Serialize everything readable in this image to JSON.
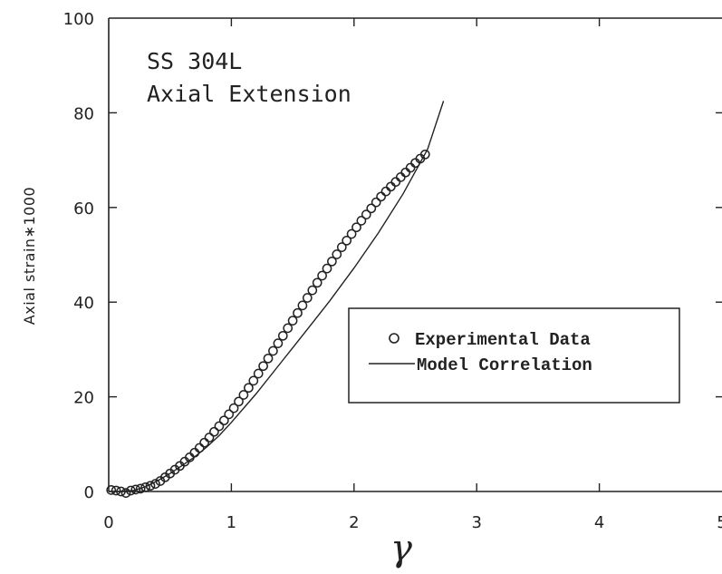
{
  "chart_data": {
    "type": "scatter",
    "title": "",
    "xlabel": "γ",
    "ylabel": "Axial strain∗1000",
    "xlim": [
      0,
      5
    ],
    "ylim": [
      0,
      100
    ],
    "xticks": [
      "0",
      "1",
      "2",
      "3",
      "4",
      "5"
    ],
    "yticks": [
      "0",
      "20",
      "40",
      "60",
      "80",
      "100"
    ],
    "annotation": [
      "SS 304L",
      "Axial Extension"
    ],
    "legend_position": "center-right",
    "grid": false,
    "series": [
      {
        "name": "Experimental Data",
        "marker": "open-circle",
        "x": [
          0.02,
          0.06,
          0.1,
          0.14,
          0.18,
          0.22,
          0.26,
          0.3,
          0.34,
          0.38,
          0.42,
          0.46,
          0.5,
          0.54,
          0.58,
          0.62,
          0.66,
          0.7,
          0.74,
          0.78,
          0.82,
          0.86,
          0.9,
          0.94,
          0.98,
          1.02,
          1.06,
          1.1,
          1.14,
          1.18,
          1.22,
          1.26,
          1.3,
          1.34,
          1.38,
          1.42,
          1.46,
          1.5,
          1.54,
          1.58,
          1.62,
          1.66,
          1.7,
          1.74,
          1.78,
          1.82,
          1.86,
          1.9,
          1.94,
          1.98,
          2.02,
          2.06,
          2.1,
          2.14,
          2.18,
          2.22,
          2.26,
          2.3,
          2.34,
          2.38,
          2.42,
          2.46,
          2.5,
          2.54,
          2.58
        ],
        "y": [
          0.3,
          0.2,
          0.0,
          -0.3,
          0.2,
          0.4,
          0.6,
          0.9,
          1.2,
          1.6,
          2.2,
          3.0,
          3.8,
          4.6,
          5.4,
          6.3,
          7.2,
          8.2,
          9.2,
          10.3,
          11.4,
          12.6,
          13.8,
          15.0,
          16.3,
          17.6,
          19.0,
          20.4,
          21.9,
          23.4,
          24.9,
          26.5,
          28.1,
          29.7,
          31.3,
          32.9,
          34.5,
          36.1,
          37.7,
          39.3,
          40.9,
          42.5,
          44.1,
          45.6,
          47.1,
          48.6,
          50.1,
          51.6,
          53.0,
          54.4,
          55.8,
          57.2,
          58.5,
          59.8,
          61.1,
          62.3,
          63.4,
          64.4,
          65.4,
          66.4,
          67.4,
          68.4,
          69.4,
          70.3,
          71.2
        ]
      },
      {
        "name": "Model Correlation",
        "marker": "line",
        "x": [
          0,
          0.1,
          0.2,
          0.3,
          0.4,
          0.5,
          0.6,
          0.7,
          0.8,
          0.9,
          1.0,
          1.2,
          1.4,
          1.6,
          1.8,
          2.0,
          2.2,
          2.4,
          2.6,
          2.73
        ],
        "y": [
          0,
          0,
          0.2,
          1.0,
          2.3,
          3.8,
          5.5,
          7.3,
          9.4,
          11.8,
          14.6,
          20.6,
          27.1,
          33.6,
          40.2,
          47.2,
          54.7,
          62.9,
          72.3,
          82.5
        ]
      }
    ]
  }
}
